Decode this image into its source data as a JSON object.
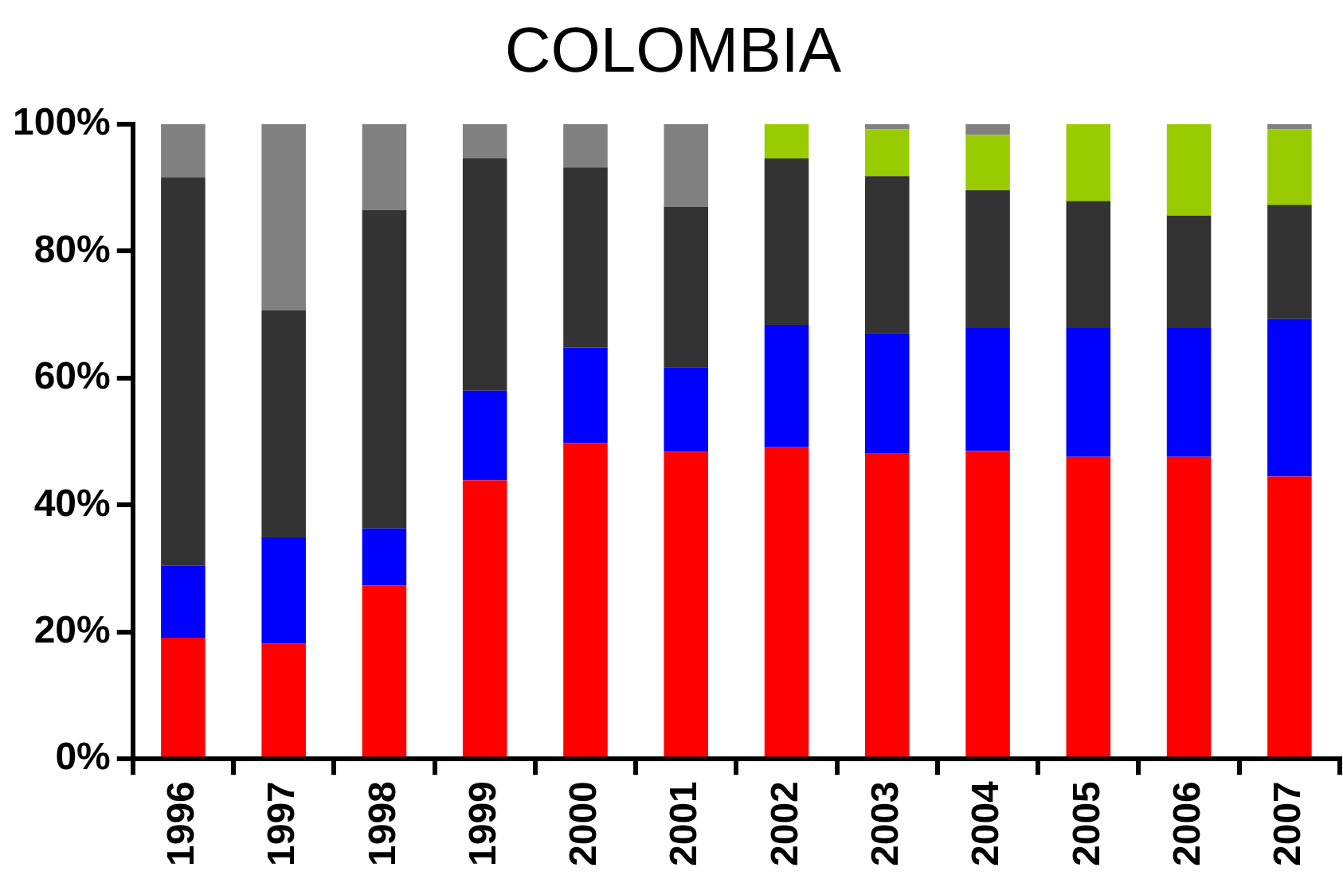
{
  "chart_data": {
    "type": "bar",
    "title": "COLOMBIA",
    "stacked": true,
    "categories": [
      "1996",
      "1997",
      "1998",
      "1999",
      "2000",
      "2001",
      "2002",
      "2003",
      "2004",
      "2005",
      "2006",
      "2007"
    ],
    "series": [
      {
        "color": "#ff0000",
        "values": [
          19.1,
          18.2,
          27.3,
          43.9,
          49.8,
          48.4,
          49.1,
          48.1,
          48.5,
          47.6,
          47.6,
          44.5
        ]
      },
      {
        "color": "#0000ff",
        "values": [
          11.3,
          16.7,
          9.0,
          14.1,
          15.0,
          13.3,
          19.3,
          19.0,
          19.4,
          20.3,
          20.3,
          24.8
        ]
      },
      {
        "color": "#333333",
        "values": [
          61.2,
          35.8,
          50.2,
          36.6,
          28.4,
          25.3,
          26.2,
          24.7,
          21.7,
          20.0,
          17.7,
          18.0
        ]
      },
      {
        "color": "#99cc00",
        "values": [
          null,
          null,
          null,
          null,
          null,
          null,
          5.4,
          7.4,
          8.7,
          12.1,
          14.4,
          11.9
        ]
      },
      {
        "color": "#808080",
        "values": [
          8.4,
          29.3,
          13.5,
          5.4,
          6.8,
          13.0,
          null,
          0.8,
          1.7,
          null,
          null,
          0.8
        ]
      }
    ],
    "ylim": [
      0,
      100
    ],
    "yticks": [
      {
        "value": 0,
        "label": "0%"
      },
      {
        "value": 20,
        "label": "20%"
      },
      {
        "value": 40,
        "label": "40%"
      },
      {
        "value": 60,
        "label": "60%"
      },
      {
        "value": 80,
        "label": "80%"
      },
      {
        "value": 100,
        "label": "100%"
      }
    ],
    "grid": false,
    "legend": false
  }
}
